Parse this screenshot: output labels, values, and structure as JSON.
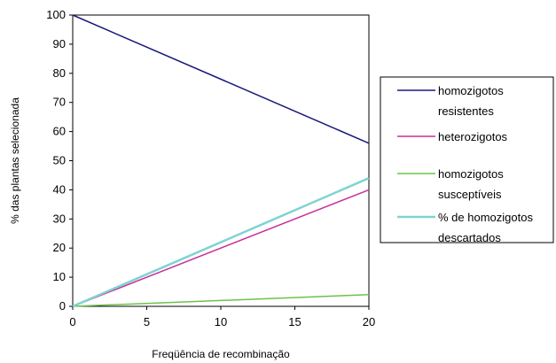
{
  "chart_data": {
    "type": "line",
    "title": "",
    "xlabel": "Freqüência de recombinação",
    "ylabel": "% das plantas selecionada",
    "xlim": [
      0,
      20
    ],
    "ylim": [
      0,
      100
    ],
    "x_ticks": [
      0,
      5,
      10,
      15,
      20
    ],
    "y_ticks": [
      0,
      10,
      20,
      30,
      40,
      50,
      60,
      70,
      80,
      90,
      100
    ],
    "grid": false,
    "legend_position": "right",
    "x": [
      0,
      20
    ],
    "series": [
      {
        "name": "homozigotos resistentes",
        "legend_lines": [
          "homozigotos",
          "resistentes"
        ],
        "color": "#1a1a7a",
        "values": [
          100,
          56
        ]
      },
      {
        "name": "heterozigotos",
        "legend_lines": [
          "heterozigotos"
        ],
        "color": "#c8309a",
        "values": [
          0,
          40
        ]
      },
      {
        "name": "homozigotos susceptíveis",
        "legend_lines": [
          "homozigotos",
          "susceptíveis"
        ],
        "color": "#6cc24a",
        "values": [
          0,
          4
        ]
      },
      {
        "name": "% de homozigotos descartados",
        "legend_lines": [
          "% de homozigotos",
          "descartados"
        ],
        "color": "#7fd3d3",
        "values": [
          0,
          44
        ]
      }
    ]
  }
}
